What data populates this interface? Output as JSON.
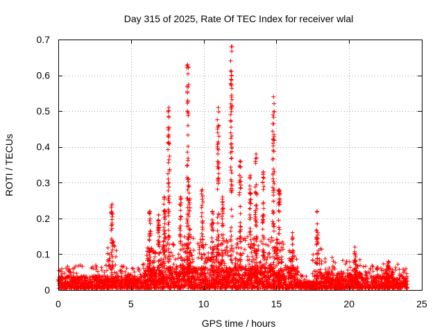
{
  "chart_data": {
    "type": "scatter",
    "title": "Day 315 of 2025, Rate Of TEC Index for receiver wlal",
    "xlabel": "GPS time / hours",
    "ylabel": "ROTI / TECUs",
    "xlim": [
      0,
      25
    ],
    "ylim": [
      0,
      0.7
    ],
    "xticks": [
      0,
      5,
      10,
      15,
      20,
      25
    ],
    "yticks": [
      0,
      0.1,
      0.2,
      0.3,
      0.4,
      0.5,
      0.6,
      0.7
    ],
    "xtick_labels": [
      "0",
      "5",
      "10",
      "15",
      "20",
      "25"
    ],
    "ytick_labels": [
      "0",
      "0.1",
      "0.2",
      "0.3",
      "0.4",
      "0.5",
      "0.6",
      "0.7"
    ],
    "grid": true,
    "marker": "plus",
    "color": "#ff0000",
    "spike_columns": [
      {
        "x": 3.7,
        "ymax": 0.24
      },
      {
        "x": 6.3,
        "ymax": 0.22
      },
      {
        "x": 6.9,
        "ymax": 0.21
      },
      {
        "x": 7.3,
        "ymax": 0.26
      },
      {
        "x": 7.6,
        "ymax": 0.51
      },
      {
        "x": 8.4,
        "ymax": 0.26
      },
      {
        "x": 8.9,
        "ymax": 0.63
      },
      {
        "x": 9.0,
        "ymax": 0.29
      },
      {
        "x": 9.9,
        "ymax": 0.28
      },
      {
        "x": 10.6,
        "ymax": 0.22
      },
      {
        "x": 11.0,
        "ymax": 0.51
      },
      {
        "x": 11.3,
        "ymax": 0.26
      },
      {
        "x": 11.9,
        "ymax": 0.68
      },
      {
        "x": 12.5,
        "ymax": 0.36
      },
      {
        "x": 13.2,
        "ymax": 0.32
      },
      {
        "x": 13.6,
        "ymax": 0.38
      },
      {
        "x": 14.1,
        "ymax": 0.33
      },
      {
        "x": 14.8,
        "ymax": 0.54
      },
      {
        "x": 15.2,
        "ymax": 0.28
      },
      {
        "x": 16.1,
        "ymax": 0.16
      },
      {
        "x": 17.8,
        "ymax": 0.22
      },
      {
        "x": 20.4,
        "ymax": 0.12
      },
      {
        "x": 22.7,
        "ymax": 0.08
      }
    ]
  }
}
